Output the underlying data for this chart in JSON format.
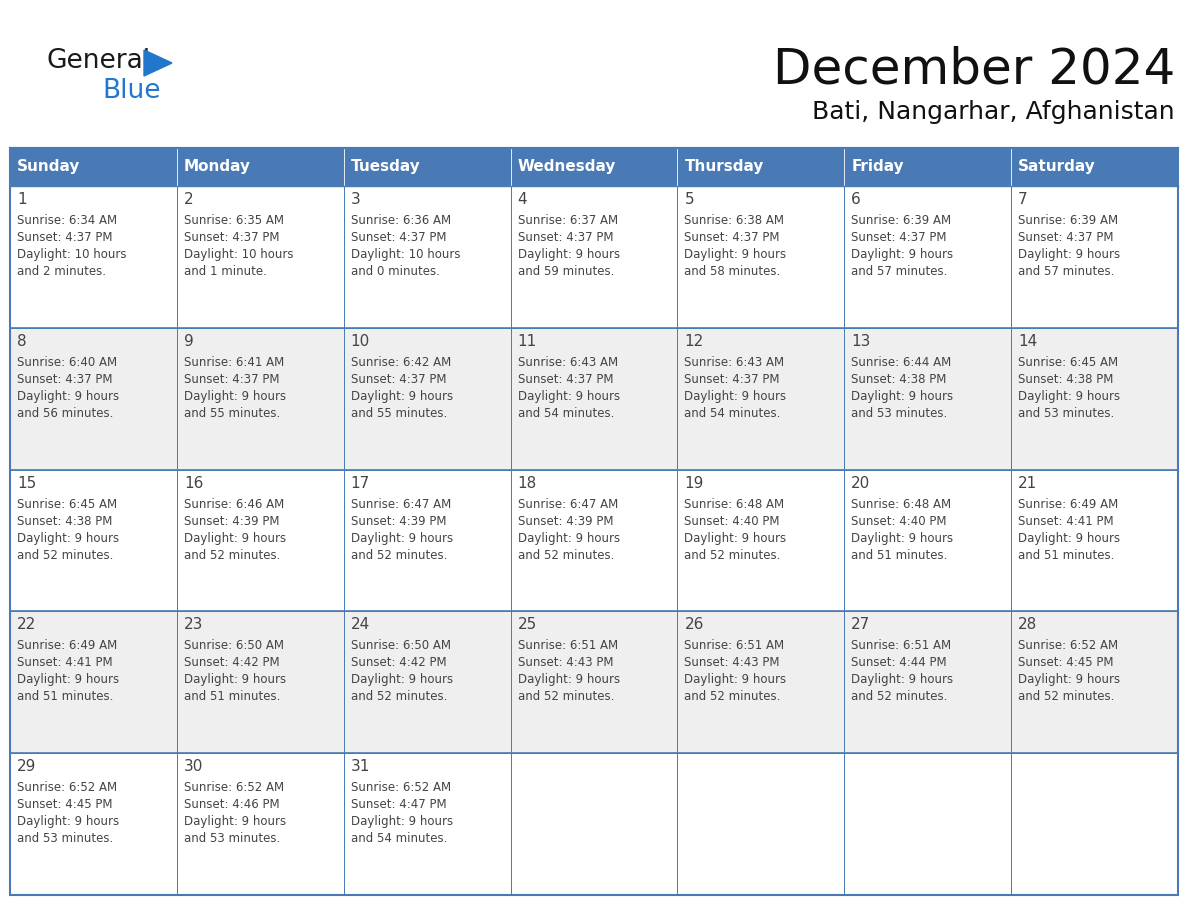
{
  "title": "December 2024",
  "subtitle": "Bati, Nangarhar, Afghanistan",
  "header_color": "#4a7ab5",
  "header_text_color": "#FFFFFF",
  "day_names": [
    "Sunday",
    "Monday",
    "Tuesday",
    "Wednesday",
    "Thursday",
    "Friday",
    "Saturday"
  ],
  "background_color": "#FFFFFF",
  "cell_bg_even": "#EFEFEF",
  "cell_bg_odd": "#FFFFFF",
  "grid_color": "#4a7ab5",
  "text_color": "#444444",
  "days": [
    {
      "day": 1,
      "col": 0,
      "row": 0,
      "sunrise": "6:34 AM",
      "sunset": "4:37 PM",
      "daylight": "10 hours\nand 2 minutes."
    },
    {
      "day": 2,
      "col": 1,
      "row": 0,
      "sunrise": "6:35 AM",
      "sunset": "4:37 PM",
      "daylight": "10 hours\nand 1 minute."
    },
    {
      "day": 3,
      "col": 2,
      "row": 0,
      "sunrise": "6:36 AM",
      "sunset": "4:37 PM",
      "daylight": "10 hours\nand 0 minutes."
    },
    {
      "day": 4,
      "col": 3,
      "row": 0,
      "sunrise": "6:37 AM",
      "sunset": "4:37 PM",
      "daylight": "9 hours\nand 59 minutes."
    },
    {
      "day": 5,
      "col": 4,
      "row": 0,
      "sunrise": "6:38 AM",
      "sunset": "4:37 PM",
      "daylight": "9 hours\nand 58 minutes."
    },
    {
      "day": 6,
      "col": 5,
      "row": 0,
      "sunrise": "6:39 AM",
      "sunset": "4:37 PM",
      "daylight": "9 hours\nand 57 minutes."
    },
    {
      "day": 7,
      "col": 6,
      "row": 0,
      "sunrise": "6:39 AM",
      "sunset": "4:37 PM",
      "daylight": "9 hours\nand 57 minutes."
    },
    {
      "day": 8,
      "col": 0,
      "row": 1,
      "sunrise": "6:40 AM",
      "sunset": "4:37 PM",
      "daylight": "9 hours\nand 56 minutes."
    },
    {
      "day": 9,
      "col": 1,
      "row": 1,
      "sunrise": "6:41 AM",
      "sunset": "4:37 PM",
      "daylight": "9 hours\nand 55 minutes."
    },
    {
      "day": 10,
      "col": 2,
      "row": 1,
      "sunrise": "6:42 AM",
      "sunset": "4:37 PM",
      "daylight": "9 hours\nand 55 minutes."
    },
    {
      "day": 11,
      "col": 3,
      "row": 1,
      "sunrise": "6:43 AM",
      "sunset": "4:37 PM",
      "daylight": "9 hours\nand 54 minutes."
    },
    {
      "day": 12,
      "col": 4,
      "row": 1,
      "sunrise": "6:43 AM",
      "sunset": "4:37 PM",
      "daylight": "9 hours\nand 54 minutes."
    },
    {
      "day": 13,
      "col": 5,
      "row": 1,
      "sunrise": "6:44 AM",
      "sunset": "4:38 PM",
      "daylight": "9 hours\nand 53 minutes."
    },
    {
      "day": 14,
      "col": 6,
      "row": 1,
      "sunrise": "6:45 AM",
      "sunset": "4:38 PM",
      "daylight": "9 hours\nand 53 minutes."
    },
    {
      "day": 15,
      "col": 0,
      "row": 2,
      "sunrise": "6:45 AM",
      "sunset": "4:38 PM",
      "daylight": "9 hours\nand 52 minutes."
    },
    {
      "day": 16,
      "col": 1,
      "row": 2,
      "sunrise": "6:46 AM",
      "sunset": "4:39 PM",
      "daylight": "9 hours\nand 52 minutes."
    },
    {
      "day": 17,
      "col": 2,
      "row": 2,
      "sunrise": "6:47 AM",
      "sunset": "4:39 PM",
      "daylight": "9 hours\nand 52 minutes."
    },
    {
      "day": 18,
      "col": 3,
      "row": 2,
      "sunrise": "6:47 AM",
      "sunset": "4:39 PM",
      "daylight": "9 hours\nand 52 minutes."
    },
    {
      "day": 19,
      "col": 4,
      "row": 2,
      "sunrise": "6:48 AM",
      "sunset": "4:40 PM",
      "daylight": "9 hours\nand 52 minutes."
    },
    {
      "day": 20,
      "col": 5,
      "row": 2,
      "sunrise": "6:48 AM",
      "sunset": "4:40 PM",
      "daylight": "9 hours\nand 51 minutes."
    },
    {
      "day": 21,
      "col": 6,
      "row": 2,
      "sunrise": "6:49 AM",
      "sunset": "4:41 PM",
      "daylight": "9 hours\nand 51 minutes."
    },
    {
      "day": 22,
      "col": 0,
      "row": 3,
      "sunrise": "6:49 AM",
      "sunset": "4:41 PM",
      "daylight": "9 hours\nand 51 minutes."
    },
    {
      "day": 23,
      "col": 1,
      "row": 3,
      "sunrise": "6:50 AM",
      "sunset": "4:42 PM",
      "daylight": "9 hours\nand 51 minutes."
    },
    {
      "day": 24,
      "col": 2,
      "row": 3,
      "sunrise": "6:50 AM",
      "sunset": "4:42 PM",
      "daylight": "9 hours\nand 52 minutes."
    },
    {
      "day": 25,
      "col": 3,
      "row": 3,
      "sunrise": "6:51 AM",
      "sunset": "4:43 PM",
      "daylight": "9 hours\nand 52 minutes."
    },
    {
      "day": 26,
      "col": 4,
      "row": 3,
      "sunrise": "6:51 AM",
      "sunset": "4:43 PM",
      "daylight": "9 hours\nand 52 minutes."
    },
    {
      "day": 27,
      "col": 5,
      "row": 3,
      "sunrise": "6:51 AM",
      "sunset": "4:44 PM",
      "daylight": "9 hours\nand 52 minutes."
    },
    {
      "day": 28,
      "col": 6,
      "row": 3,
      "sunrise": "6:52 AM",
      "sunset": "4:45 PM",
      "daylight": "9 hours\nand 52 minutes."
    },
    {
      "day": 29,
      "col": 0,
      "row": 4,
      "sunrise": "6:52 AM",
      "sunset": "4:45 PM",
      "daylight": "9 hours\nand 53 minutes."
    },
    {
      "day": 30,
      "col": 1,
      "row": 4,
      "sunrise": "6:52 AM",
      "sunset": "4:46 PM",
      "daylight": "9 hours\nand 53 minutes."
    },
    {
      "day": 31,
      "col": 2,
      "row": 4,
      "sunrise": "6:52 AM",
      "sunset": "4:47 PM",
      "daylight": "9 hours\nand 54 minutes."
    }
  ],
  "logo_general_color": "#1a1a1a",
  "logo_blue_color": "#2277cc",
  "logo_triangle_color": "#2277cc",
  "title_fontsize": 36,
  "subtitle_fontsize": 18,
  "header_fontsize": 11,
  "day_num_fontsize": 11,
  "cell_text_fontsize": 8.5
}
